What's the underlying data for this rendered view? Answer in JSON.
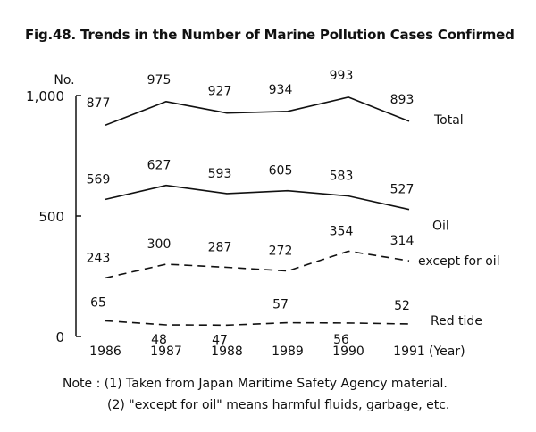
{
  "chart_data": {
    "type": "line",
    "title": "Fig.48. Trends in the Number of Marine Pollution Cases Confirmed",
    "ylabel": "No.",
    "xlabel": "(Year)",
    "ylim": [
      0,
      1000
    ],
    "yticks": [
      "0",
      "500",
      "1,000"
    ],
    "categories": [
      "1986",
      "1987",
      "1988",
      "1989",
      "1990",
      "1991"
    ],
    "grid": false,
    "legend": "inline labels at right end of each line",
    "series": [
      {
        "name": "Total",
        "values": [
          877,
          975,
          927,
          934,
          993,
          893
        ],
        "style": "solid"
      },
      {
        "name": "Oil",
        "values": [
          569,
          627,
          593,
          605,
          583,
          527
        ],
        "style": "solid"
      },
      {
        "name": "except for oil",
        "values": [
          243,
          300,
          287,
          272,
          354,
          314
        ],
        "style": "dashed"
      },
      {
        "name": "Red tide",
        "values": [
          65,
          48,
          47,
          57,
          56,
          52
        ],
        "style": "dashed"
      }
    ]
  },
  "notes": [
    "Note : (1) Taken from Japan Maritime Safety Agency material.",
    "(2) \"except for oil\" means harmful fluids, garbage, etc."
  ]
}
